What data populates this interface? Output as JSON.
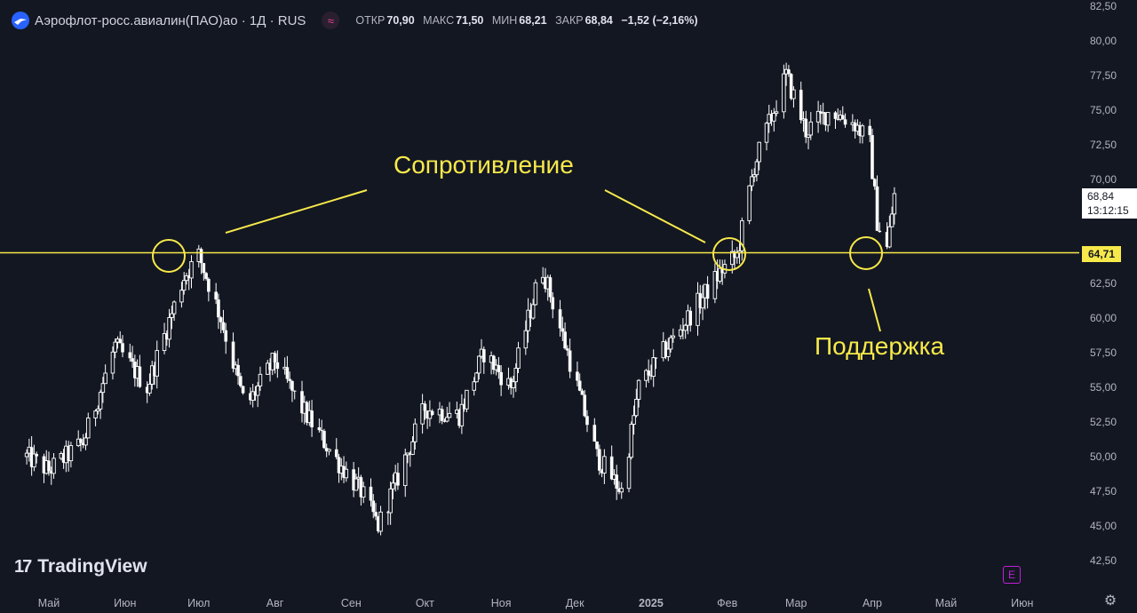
{
  "header": {
    "title": "Аэрофлот-росс.авиалин(ПАО)ао · 1Д · RUS",
    "open_label": "ОТКР",
    "open_value": "70,90",
    "high_label": "МАКС",
    "high_value": "71,50",
    "low_label": "МИН",
    "low_value": "68,21",
    "close_label": "ЗАКР",
    "close_value": "68,84",
    "change": "−1,52 (−2,16%)"
  },
  "price_label": {
    "price": "68,84",
    "time": "13:12:15"
  },
  "level_label": "64,71",
  "brand": "TradingView",
  "earnings_badge": "E",
  "annotations": {
    "resistance": "Сопротивление",
    "support": "Поддержка"
  },
  "colors": {
    "background": "#131722",
    "candles": "#ffffff",
    "level_line": "#f7e94a",
    "text": "#b2b5be"
  },
  "icons": {
    "symbol_logo": "aeroflot-logo-icon",
    "compare": "wave-icon",
    "settings": "gear-icon"
  },
  "chart_data": {
    "type": "candlestick",
    "title": "",
    "xlabel": "",
    "ylabel": "",
    "x_tick_labels": [
      "Май",
      "Июн",
      "Июл",
      "Авг",
      "Сен",
      "Окт",
      "Ноя",
      "Дек",
      "2025",
      "Фев",
      "Мар",
      "Апр",
      "Май",
      "Июн"
    ],
    "y_tick_values": [
      82.5,
      80,
      77.5,
      75,
      72.5,
      70,
      67.5,
      65,
      62.5,
      60,
      57.5,
      55,
      52.5,
      50,
      47.5,
      45,
      42.5
    ],
    "y_tick_labels": [
      "82,50",
      "80,00",
      "77,50",
      "75,00",
      "72,50",
      "70,00",
      "",
      "",
      "62,50",
      "60,00",
      "57,50",
      "55,00",
      "52,50",
      "50,00",
      "47,50",
      "45,00",
      "42,50"
    ],
    "ylim": [
      41.5,
      82.8
    ],
    "horizontal_level": 64.71,
    "last_price": 68.84,
    "approx_close_path": [
      {
        "date": "2024-04-22",
        "value": 50.0
      },
      {
        "date": "2024-05-01",
        "value": 49.0
      },
      {
        "date": "2024-05-15",
        "value": 51.0
      },
      {
        "date": "2024-05-28",
        "value": 58.0
      },
      {
        "date": "2024-06-10",
        "value": 55.0
      },
      {
        "date": "2024-06-25",
        "value": 63.0
      },
      {
        "date": "2024-07-01",
        "value": 64.5
      },
      {
        "date": "2024-07-10",
        "value": 60.0
      },
      {
        "date": "2024-07-20",
        "value": 53.5
      },
      {
        "date": "2024-08-01",
        "value": 57.0
      },
      {
        "date": "2024-08-10",
        "value": 54.0
      },
      {
        "date": "2024-08-25",
        "value": 50.0
      },
      {
        "date": "2024-09-05",
        "value": 47.5
      },
      {
        "date": "2024-09-12",
        "value": 45.0
      },
      {
        "date": "2024-09-20",
        "value": 48.5
      },
      {
        "date": "2024-10-01",
        "value": 53.5
      },
      {
        "date": "2024-10-15",
        "value": 53.0
      },
      {
        "date": "2024-10-25",
        "value": 57.5
      },
      {
        "date": "2024-11-05",
        "value": 55.0
      },
      {
        "date": "2024-11-15",
        "value": 62.0
      },
      {
        "date": "2024-11-18",
        "value": 63.5
      },
      {
        "date": "2024-11-28",
        "value": 57.5
      },
      {
        "date": "2024-12-10",
        "value": 50.0
      },
      {
        "date": "2024-12-20",
        "value": 47.5
      },
      {
        "date": "2024-12-27",
        "value": 55.0
      },
      {
        "date": "2025-01-10",
        "value": 58.5
      },
      {
        "date": "2025-01-20",
        "value": 61.0
      },
      {
        "date": "2025-01-30",
        "value": 63.5
      },
      {
        "date": "2025-02-05",
        "value": 64.5
      },
      {
        "date": "2025-02-12",
        "value": 71.0
      },
      {
        "date": "2025-02-25",
        "value": 77.5
      },
      {
        "date": "2025-03-05",
        "value": 73.5
      },
      {
        "date": "2025-03-15",
        "value": 75.0
      },
      {
        "date": "2025-03-25",
        "value": 74.0
      },
      {
        "date": "2025-03-31",
        "value": 72.5
      },
      {
        "date": "2025-04-03",
        "value": 67.0
      },
      {
        "date": "2025-04-07",
        "value": 65.0
      },
      {
        "date": "2025-04-10",
        "value": 68.84
      }
    ],
    "grid": false,
    "legend": "none"
  }
}
